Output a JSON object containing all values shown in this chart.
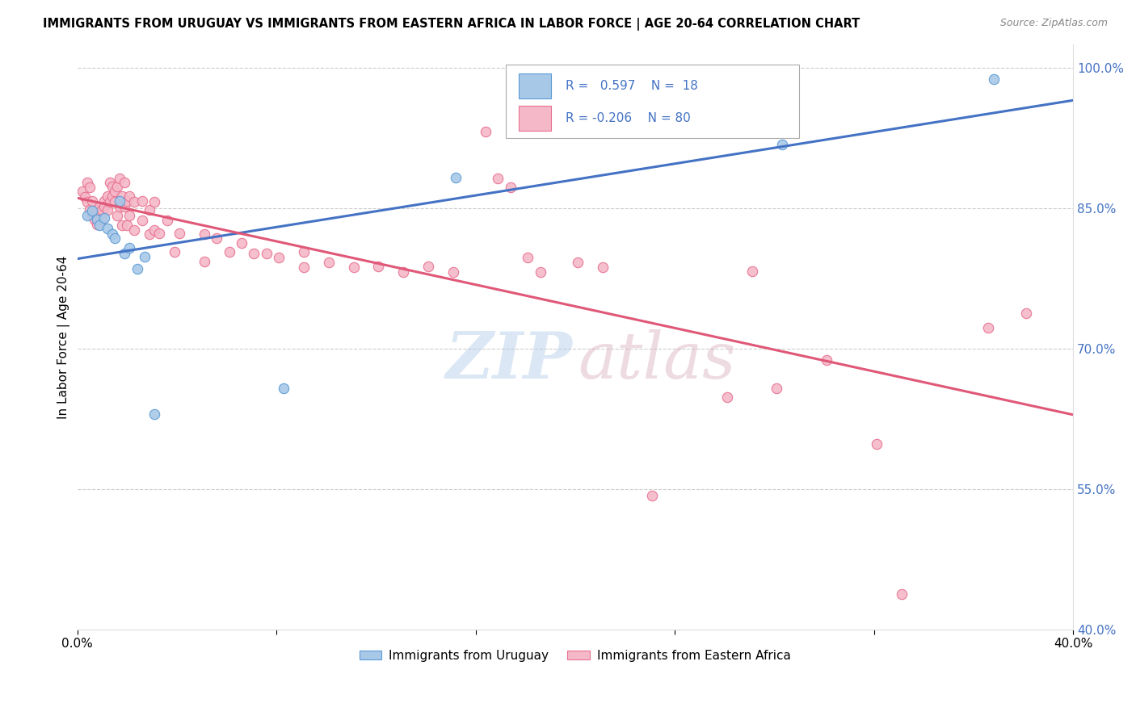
{
  "title": "IMMIGRANTS FROM URUGUAY VS IMMIGRANTS FROM EASTERN AFRICA IN LABOR FORCE | AGE 20-64 CORRELATION CHART",
  "source": "Source: ZipAtlas.com",
  "ylabel": "In Labor Force | Age 20-64",
  "xlim": [
    0.0,
    0.4
  ],
  "ylim": [
    0.4,
    1.025
  ],
  "xtick_positions": [
    0.0,
    0.08,
    0.16,
    0.24,
    0.32,
    0.4
  ],
  "xticklabels": [
    "0.0%",
    "",
    "",
    "",
    "",
    "40.0%"
  ],
  "yticks_right": [
    0.4,
    0.55,
    0.7,
    0.85,
    1.0
  ],
  "ytick_labels_right": [
    "40.0%",
    "55.0%",
    "70.0%",
    "85.0%",
    "100.0%"
  ],
  "blue_fill": "#a8c8e8",
  "blue_edge": "#5b9bd5",
  "pink_fill": "#f4b8c8",
  "pink_edge": "#e87090",
  "blue_line": "#4472c4",
  "pink_line": "#e05878",
  "blue_text": "#4472c4",
  "pink_text": "#e05878",
  "right_axis_color": "#4472c4",
  "grid_color": "#cccccc",
  "dot_size": 80,
  "blue_dots": [
    [
      0.004,
      0.842
    ],
    [
      0.006,
      0.847
    ],
    [
      0.008,
      0.838
    ],
    [
      0.009,
      0.832
    ],
    [
      0.011,
      0.84
    ],
    [
      0.012,
      0.828
    ],
    [
      0.014,
      0.822
    ],
    [
      0.015,
      0.818
    ],
    [
      0.017,
      0.858
    ],
    [
      0.019,
      0.802
    ],
    [
      0.021,
      0.808
    ],
    [
      0.024,
      0.785
    ],
    [
      0.027,
      0.798
    ],
    [
      0.031,
      0.63
    ],
    [
      0.083,
      0.658
    ],
    [
      0.152,
      0.883
    ],
    [
      0.283,
      0.918
    ],
    [
      0.368,
      0.988
    ]
  ],
  "pink_dots": [
    [
      0.002,
      0.868
    ],
    [
      0.003,
      0.862
    ],
    [
      0.004,
      0.878
    ],
    [
      0.004,
      0.857
    ],
    [
      0.005,
      0.872
    ],
    [
      0.005,
      0.848
    ],
    [
      0.006,
      0.858
    ],
    [
      0.006,
      0.842
    ],
    [
      0.007,
      0.843
    ],
    [
      0.007,
      0.838
    ],
    [
      0.008,
      0.848
    ],
    [
      0.008,
      0.833
    ],
    [
      0.009,
      0.852
    ],
    [
      0.009,
      0.842
    ],
    [
      0.01,
      0.848
    ],
    [
      0.01,
      0.838
    ],
    [
      0.011,
      0.858
    ],
    [
      0.011,
      0.852
    ],
    [
      0.012,
      0.863
    ],
    [
      0.012,
      0.848
    ],
    [
      0.013,
      0.878
    ],
    [
      0.013,
      0.857
    ],
    [
      0.014,
      0.873
    ],
    [
      0.014,
      0.863
    ],
    [
      0.015,
      0.868
    ],
    [
      0.015,
      0.857
    ],
    [
      0.016,
      0.873
    ],
    [
      0.016,
      0.842
    ],
    [
      0.017,
      0.882
    ],
    [
      0.017,
      0.852
    ],
    [
      0.018,
      0.863
    ],
    [
      0.018,
      0.832
    ],
    [
      0.019,
      0.878
    ],
    [
      0.019,
      0.852
    ],
    [
      0.02,
      0.858
    ],
    [
      0.02,
      0.832
    ],
    [
      0.021,
      0.863
    ],
    [
      0.021,
      0.842
    ],
    [
      0.023,
      0.857
    ],
    [
      0.023,
      0.827
    ],
    [
      0.026,
      0.858
    ],
    [
      0.026,
      0.837
    ],
    [
      0.029,
      0.848
    ],
    [
      0.029,
      0.822
    ],
    [
      0.031,
      0.857
    ],
    [
      0.031,
      0.827
    ],
    [
      0.033,
      0.823
    ],
    [
      0.036,
      0.837
    ],
    [
      0.039,
      0.803
    ],
    [
      0.041,
      0.823
    ],
    [
      0.051,
      0.822
    ],
    [
      0.051,
      0.793
    ],
    [
      0.056,
      0.818
    ],
    [
      0.061,
      0.803
    ],
    [
      0.066,
      0.813
    ],
    [
      0.071,
      0.802
    ],
    [
      0.076,
      0.802
    ],
    [
      0.081,
      0.797
    ],
    [
      0.091,
      0.803
    ],
    [
      0.091,
      0.787
    ],
    [
      0.101,
      0.792
    ],
    [
      0.111,
      0.787
    ],
    [
      0.121,
      0.788
    ],
    [
      0.131,
      0.782
    ],
    [
      0.141,
      0.788
    ],
    [
      0.151,
      0.782
    ],
    [
      0.164,
      0.932
    ],
    [
      0.169,
      0.882
    ],
    [
      0.174,
      0.872
    ],
    [
      0.181,
      0.797
    ],
    [
      0.186,
      0.782
    ],
    [
      0.201,
      0.792
    ],
    [
      0.211,
      0.787
    ],
    [
      0.231,
      0.543
    ],
    [
      0.261,
      0.648
    ],
    [
      0.271,
      0.783
    ],
    [
      0.281,
      0.658
    ],
    [
      0.301,
      0.688
    ],
    [
      0.321,
      0.598
    ],
    [
      0.331,
      0.438
    ],
    [
      0.366,
      0.722
    ],
    [
      0.381,
      0.738
    ]
  ]
}
